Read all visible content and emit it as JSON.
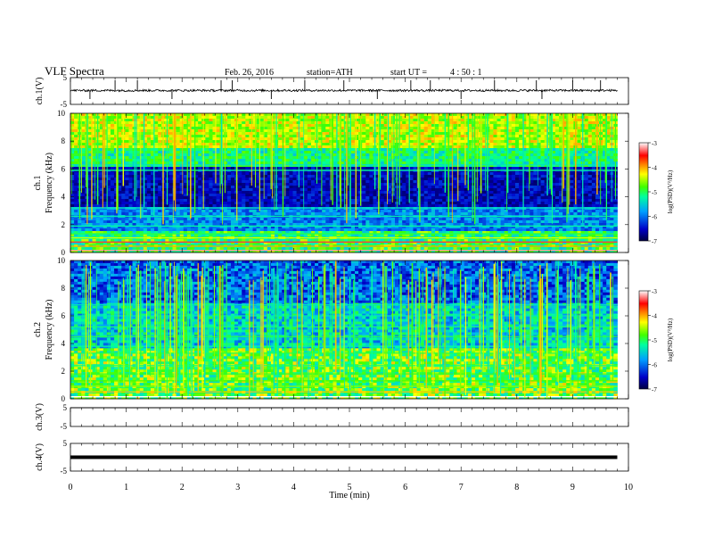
{
  "header": {
    "title": "VLF Spectra",
    "date": "Feb. 26, 2016",
    "station": "station=ATH",
    "start_label": "start UT =",
    "start_time": "4 : 50 : 1"
  },
  "chart_data": [
    {
      "type": "line",
      "panel": "ch1-waveform",
      "ylabel": "ch.1(V)",
      "ylim": [
        -5,
        5
      ],
      "yticks": [
        "5",
        "-5"
      ],
      "xlim": [
        0,
        10
      ],
      "baseline": 0.2,
      "noise_amplitude": 0.4,
      "spike_times_min": [
        0.35,
        0.8,
        1.2,
        1.82,
        2.7,
        2.9,
        3.6,
        4.2,
        4.9,
        5.5,
        6.1,
        6.45,
        7.0,
        7.6,
        8.35,
        8.45,
        9.0,
        9.5
      ]
    },
    {
      "type": "heatmap",
      "panel": "ch1-spectrogram",
      "ylabel": "ch.1 Frequency (kHz)",
      "ylim": [
        0,
        10
      ],
      "yticks": [
        "0",
        "2",
        "4",
        "6",
        "8",
        "10"
      ],
      "xlim": [
        0,
        9.8
      ],
      "colorbar": {
        "label": "log(PSD)(V²/Hz)",
        "range": [
          -7,
          -3
        ],
        "ticks": [
          "-3",
          "-4",
          "-5",
          "-6",
          "-7"
        ]
      }
    },
    {
      "type": "heatmap",
      "panel": "ch2-spectrogram",
      "ylabel": "ch.2 Frequency (kHz)",
      "ylim": [
        0,
        10
      ],
      "yticks": [
        "0",
        "2",
        "4",
        "6",
        "8",
        "10"
      ],
      "xlim": [
        0,
        9.8
      ],
      "colorbar": {
        "label": "log(PSD)(V²/Hz)",
        "range": [
          -7,
          -3
        ],
        "ticks": [
          "-3",
          "-4",
          "-5",
          "-6",
          "-7"
        ]
      }
    },
    {
      "type": "line",
      "panel": "ch3-waveform",
      "ylabel": "ch.3(V)",
      "ylim": [
        -5,
        5
      ],
      "yticks": [
        "5",
        "-5"
      ],
      "xlim": [
        0,
        10
      ],
      "baseline": 5
    },
    {
      "type": "line",
      "panel": "ch4-waveform",
      "ylabel": "ch.4(V)",
      "ylim": [
        -5,
        5
      ],
      "yticks": [
        "5",
        "-5"
      ],
      "xlim": [
        0,
        10
      ],
      "baseline": 0
    }
  ],
  "xaxis": {
    "label": "Time (min)",
    "ticks": [
      "0",
      "1",
      "2",
      "3",
      "4",
      "5",
      "6",
      "7",
      "8",
      "9",
      "10"
    ]
  }
}
